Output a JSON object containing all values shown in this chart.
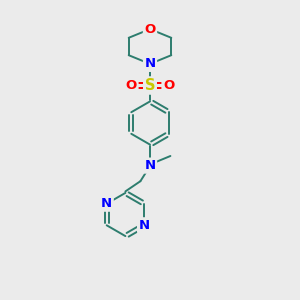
{
  "background_color": "#ebebeb",
  "bond_color": "#2d7d6e",
  "nitrogen_color": "#0000ff",
  "oxygen_color": "#ff0000",
  "sulfur_color": "#c8c800",
  "figsize": [
    3.0,
    3.0
  ],
  "dpi": 100,
  "xlim": [
    0,
    10
  ],
  "ylim": [
    0,
    10
  ]
}
